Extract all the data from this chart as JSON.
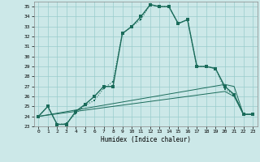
{
  "xlabel": "Humidex (Indice chaleur)",
  "background_color": "#cce8e8",
  "grid_color": "#99cccc",
  "line_color": "#1a6b5a",
  "xlim": [
    -0.5,
    23.5
  ],
  "ylim": [
    23,
    35.5
  ],
  "xticks": [
    0,
    1,
    2,
    3,
    4,
    5,
    6,
    7,
    8,
    9,
    10,
    11,
    12,
    13,
    14,
    15,
    16,
    17,
    18,
    19,
    20,
    21,
    22,
    23
  ],
  "yticks": [
    23,
    24,
    25,
    26,
    27,
    28,
    29,
    30,
    31,
    32,
    33,
    34,
    35
  ],
  "line1_x": [
    0,
    1,
    2,
    3,
    4,
    5,
    6,
    7,
    8,
    9,
    10,
    11,
    12,
    13,
    14,
    15,
    16,
    17,
    18,
    19,
    20,
    21,
    22,
    23
  ],
  "line1_y": [
    24.0,
    25.0,
    23.2,
    23.2,
    24.5,
    25.2,
    26.0,
    27.0,
    27.0,
    32.3,
    33.0,
    34.0,
    35.2,
    35.0,
    35.0,
    33.3,
    33.7,
    29.0,
    29.0,
    28.8,
    27.0,
    26.2,
    24.2,
    24.2
  ],
  "line2_x": [
    0,
    1,
    2,
    3,
    4,
    5,
    6,
    7,
    8,
    9,
    10,
    11,
    12,
    13,
    14,
    15,
    16,
    17,
    18,
    19,
    20,
    21,
    22,
    23
  ],
  "line2_y": [
    24.0,
    25.0,
    23.2,
    23.3,
    24.3,
    25.1,
    25.6,
    26.8,
    27.5,
    32.3,
    33.0,
    33.7,
    35.2,
    35.0,
    35.0,
    33.3,
    33.7,
    29.0,
    29.0,
    28.8,
    26.7,
    26.2,
    24.2,
    24.2
  ],
  "line3_x": [
    0,
    20,
    21,
    22,
    23
  ],
  "line3_y": [
    24.0,
    27.2,
    27.0,
    24.2,
    24.2
  ],
  "line4_x": [
    0,
    20,
    21,
    22,
    23
  ],
  "line4_y": [
    24.0,
    26.5,
    26.0,
    24.2,
    24.2
  ]
}
